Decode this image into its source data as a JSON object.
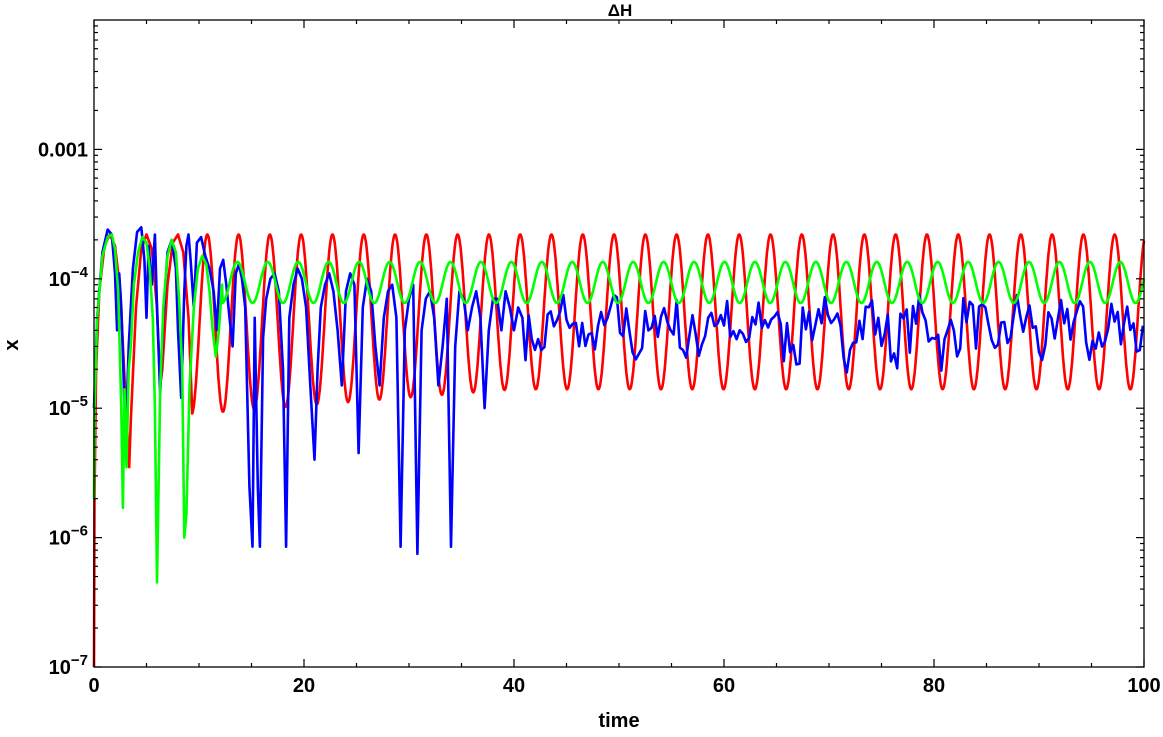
{
  "chart_data": {
    "type": "line",
    "title": "ΔH",
    "xlabel": "time",
    "ylabel": "x",
    "xlim": [
      0,
      100
    ],
    "ylim": [
      1e-07,
      0.01
    ],
    "yscale": "log",
    "grid": false,
    "x_ticks": [
      {
        "value": 0,
        "label": "0"
      },
      {
        "value": 20,
        "label": "20"
      },
      {
        "value": 40,
        "label": "40"
      },
      {
        "value": 60,
        "label": "60"
      },
      {
        "value": 80,
        "label": "80"
      },
      {
        "value": 100,
        "label": "100"
      }
    ],
    "y_ticks": [
      {
        "value": 1e-07,
        "mantissa": "10",
        "exp": "−7"
      },
      {
        "value": 1e-06,
        "mantissa": "10",
        "exp": "−6"
      },
      {
        "value": 1e-05,
        "mantissa": "10",
        "exp": "−5"
      },
      {
        "value": 0.0001,
        "mantissa": "10",
        "exp": "−4"
      },
      {
        "value": 0.001,
        "mantissa": "0.001",
        "exp": ""
      }
    ],
    "series": [
      {
        "color": "#ff0000",
        "x": [
          0,
          0.05,
          0.2,
          0.5,
          1.0,
          1.5,
          2.0,
          2.5,
          3.0,
          3.35,
          3.5,
          4.0,
          4.5,
          5.0,
          5.5,
          6.0,
          6.3,
          6.5,
          7.0,
          7.5,
          8.0,
          8.5,
          9.0,
          9.3
        ],
        "values": [
          1e-07,
          2e-06,
          2e-05,
          8e-05,
          0.00018,
          0.00022,
          0.00018,
          8e-05,
          1.2e-05,
          3.5e-06,
          8e-06,
          6e-05,
          0.00017,
          0.00022,
          0.00017,
          6e-05,
          1.5e-05,
          2e-05,
          9e-05,
          0.00019,
          0.00022,
          0.00016,
          5e-05,
          1.2e-05
        ],
        "periodic": {
          "start": 9.3,
          "end": 100,
          "period": 2.98,
          "max": 0.00022,
          "min": 1.4e-05,
          "min_early": 9e-06,
          "damp_until": 40
        }
      },
      {
        "color": "#0000ff",
        "x": [
          0,
          0.3,
          0.8,
          1.3,
          1.7,
          2.0,
          2.2,
          2.4,
          2.6,
          2.8,
          3.0,
          3.3,
          3.7,
          4.1,
          4.5,
          4.8,
          5.0,
          5.2,
          5.5,
          5.8,
          6.0,
          6.3,
          6.6,
          7.0,
          7.4,
          7.8,
          8.0,
          8.3,
          8.6,
          8.8,
          9.0,
          9.2,
          9.5,
          9.8,
          10.2,
          10.6,
          11.0,
          11.4,
          11.7,
          12.0,
          12.3,
          12.6,
          12.9,
          13.2,
          13.5,
          13.8,
          14.1,
          14.4,
          14.8,
          15.1,
          15.3,
          15.6,
          15.8,
          16.1,
          16.4,
          16.8,
          17.2,
          17.6,
          18.0,
          18.3,
          18.6,
          19.0,
          19.4,
          19.8,
          20.2,
          20.6,
          21.0,
          21.3,
          21.6,
          22.0,
          22.4,
          22.8,
          23.2,
          23.6,
          24.0,
          24.4,
          24.8,
          25.2,
          25.6,
          26.0,
          26.4,
          26.8,
          27.2,
          27.6,
          28.0,
          28.4,
          28.8,
          29.2,
          29.6,
          30.0,
          30.4,
          30.8,
          31.2,
          31.6,
          32.0,
          32.4,
          32.8,
          33.2,
          33.6,
          34.0,
          34.4,
          34.8,
          35.2,
          35.6,
          36.0,
          36.4,
          36.8,
          37.2,
          37.6,
          38.0,
          38.4,
          38.8,
          39.2,
          39.6,
          40.0,
          40.4,
          40.8
        ],
        "values": [
          1e-05,
          5e-05,
          0.00016,
          0.00024,
          0.00022,
          0.00011,
          4e-05,
          0.00011,
          6e-05,
          2e-05,
          5e-06,
          3e-05,
          0.00012,
          0.00023,
          0.00025,
          0.00014,
          5e-05,
          0.00018,
          9e-05,
          0.00022,
          6e-05,
          1.3e-05,
          5e-05,
          0.00016,
          0.0002,
          0.00012,
          4e-05,
          1.2e-05,
          8e-05,
          0.00018,
          0.00022,
          0.00014,
          6e-05,
          0.00019,
          0.00021,
          0.00015,
          0.00012,
          8e-05,
          4e-05,
          0.00012,
          0.00014,
          9e-05,
          5e-05,
          3e-05,
          0.00011,
          0.00013,
          0.0001,
          6e-05,
          2.5e-06,
          8.5e-07,
          5e-05,
          2.5e-06,
          8.5e-07,
          3.5e-05,
          7e-05,
          0.0001,
          0.00011,
          8e-05,
          2e-05,
          8.5e-07,
          5e-05,
          9e-05,
          0.00012,
          0.0001,
          6e-05,
          1.5e-05,
          4e-06,
          2e-05,
          6e-05,
          9e-05,
          0.00011,
          8e-05,
          4e-05,
          1.5e-05,
          8e-05,
          0.00011,
          9e-05,
          4.5e-06,
          6e-05,
          0.0001,
          8e-05,
          3e-05,
          1.5e-05,
          5e-05,
          8e-05,
          9e-05,
          5e-05,
          8.5e-07,
          4e-05,
          7e-05,
          9e-05,
          7.5e-07,
          4e-05,
          7e-05,
          8e-05,
          5e-05,
          1.5e-05,
          3e-05,
          7e-05,
          8.5e-07,
          3e-05,
          8e-05,
          7e-05,
          4e-05,
          6e-05,
          8e-05,
          5e-05,
          1e-05,
          4e-05,
          7e-05,
          7e-05,
          4e-05,
          8e-05,
          6e-05,
          4e-05,
          6e-05,
          5e-05
        ],
        "noisy_tail": {
          "start": 40.8,
          "end": 100,
          "step": 0.3,
          "low": 1.8e-05,
          "high": 7.5e-05,
          "seed": 7
        }
      },
      {
        "color": "#00ff00",
        "x": [
          0,
          0.05,
          0.3,
          0.8,
          1.3,
          1.7,
          2.0,
          2.3,
          2.6,
          2.75,
          2.9,
          3.1,
          3.3,
          3.5,
          3.8,
          4.2,
          4.6,
          5.0,
          5.3,
          5.6,
          5.8,
          6.0,
          6.3,
          6.6,
          7.0,
          7.4,
          7.8,
          8.1,
          8.4,
          8.6,
          8.8,
          9.1,
          9.5,
          9.9,
          10.3,
          10.7,
          11.0,
          11.3,
          11.6,
          11.9,
          12.2
        ],
        "values": [
          2e-06,
          1e-05,
          5e-05,
          0.00015,
          0.00021,
          0.00022,
          0.00017,
          8e-05,
          1e-05,
          1.7e-06,
          1.4e-05,
          3.5e-06,
          2e-05,
          3e-05,
          9e-05,
          0.00016,
          0.00021,
          0.00019,
          0.00012,
          5e-05,
          1e-05,
          4.5e-07,
          1.4e-05,
          6e-05,
          0.00015,
          0.0002,
          0.00016,
          7e-05,
          2e-05,
          1e-06,
          1.5e-06,
          1.5e-05,
          6e-05,
          0.00012,
          0.00015,
          0.00013,
          8e-05,
          4e-05,
          2.5e-05,
          4e-05,
          9e-05
        ],
        "periodic": {
          "start": 12.2,
          "end": 100,
          "period": 2.9,
          "max": 0.000135,
          "min": 6.5e-05
        }
      }
    ]
  }
}
